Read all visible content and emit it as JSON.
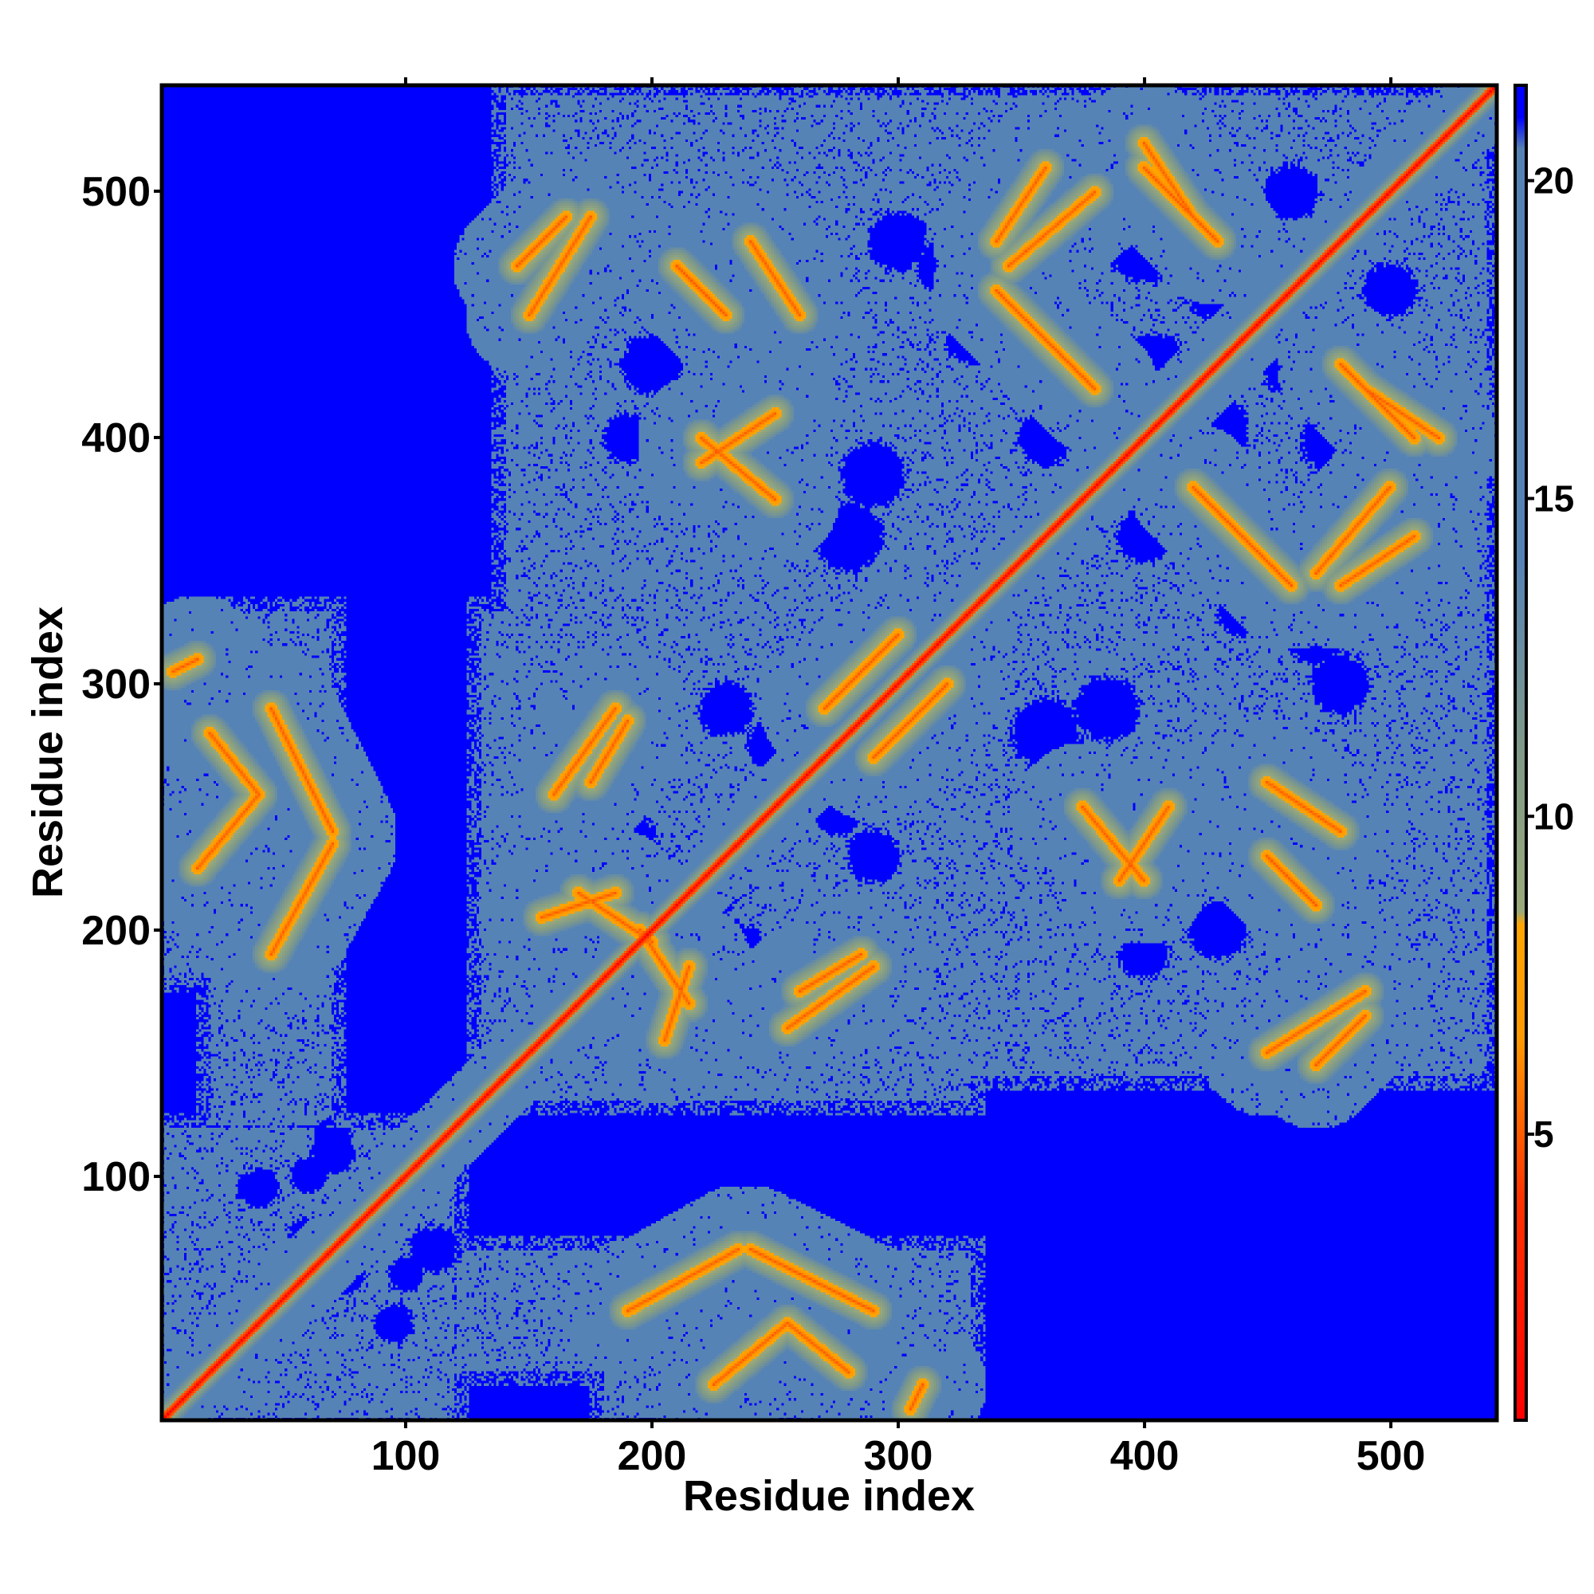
{
  "chart_data": {
    "type": "heatmap",
    "title": "",
    "xlabel": "Residue index",
    "ylabel": "Residue index",
    "xlim": [
      1,
      543
    ],
    "ylim": [
      1,
      543
    ],
    "x_ticks": [
      100,
      200,
      300,
      400,
      500
    ],
    "y_ticks": [
      100,
      200,
      300,
      400,
      500
    ],
    "colorbar": {
      "range": [
        0.5,
        21.5
      ],
      "ticks": [
        5,
        10,
        15,
        20
      ],
      "colors": {
        "near": "#ff0000",
        "mid": "#ff9900",
        "light": "#9aaa7a",
        "far": "#5683b5",
        "beyond": "#0000ff"
      },
      "stops": [
        {
          "value": 0.5,
          "color": "#ff0000"
        },
        {
          "value": 4,
          "color": "#ff3300"
        },
        {
          "value": 6.5,
          "color": "#ff9900"
        },
        {
          "value": 8.3,
          "color": "#ffa500"
        },
        {
          "value": 8.5,
          "color": "#9aaa7a"
        },
        {
          "value": 11,
          "color": "#809a88"
        },
        {
          "value": 14,
          "color": "#5683b5"
        },
        {
          "value": 20.5,
          "color": "#5683b5"
        },
        {
          "value": 21,
          "color": "#0000ff"
        },
        {
          "value": 21.5,
          "color": "#0000ff"
        }
      ]
    },
    "contact_regions": [
      {
        "x": [
          1,
          120
        ],
        "y": [
          1,
          120
        ]
      },
      {
        "x": [
          1,
          40
        ],
        "y": [
          180,
          320
        ]
      },
      {
        "x": [
          120,
          330
        ],
        "y": [
          20,
          70
        ]
      },
      {
        "x": [
          130,
          330
        ],
        "y": [
          140,
          330
        ]
      },
      {
        "x": [
          140,
          330
        ],
        "y": [
          320,
          515
        ]
      },
      {
        "x": [
          330,
          540
        ],
        "y": [
          140,
          330
        ]
      },
      {
        "x": [
          330,
          540
        ],
        "y": [
          320,
          540
        ]
      }
    ],
    "strands": [
      {
        "x1": 15,
        "y1": 225,
        "x2": 40,
        "y2": 255
      },
      {
        "x1": 40,
        "y1": 255,
        "x2": 20,
        "y2": 280
      },
      {
        "x1": 5,
        "y1": 305,
        "x2": 15,
        "y2": 310
      },
      {
        "x1": 155,
        "y1": 205,
        "x2": 185,
        "y2": 215
      },
      {
        "x1": 195,
        "y1": 200,
        "x2": 215,
        "y2": 170
      },
      {
        "x1": 175,
        "y1": 260,
        "x2": 190,
        "y2": 285
      },
      {
        "x1": 255,
        "y1": 160,
        "x2": 290,
        "y2": 185
      },
      {
        "x1": 270,
        "y1": 290,
        "x2": 300,
        "y2": 320
      },
      {
        "x1": 190,
        "y1": 45,
        "x2": 235,
        "y2": 70
      },
      {
        "x1": 240,
        "y1": 70,
        "x2": 290,
        "y2": 45
      },
      {
        "x1": 145,
        "y1": 470,
        "x2": 165,
        "y2": 490
      },
      {
        "x1": 210,
        "y1": 470,
        "x2": 230,
        "y2": 450
      },
      {
        "x1": 220,
        "y1": 400,
        "x2": 250,
        "y2": 375
      },
      {
        "x1": 345,
        "y1": 470,
        "x2": 380,
        "y2": 500
      },
      {
        "x1": 400,
        "y1": 510,
        "x2": 430,
        "y2": 480
      },
      {
        "x1": 390,
        "y1": 220,
        "x2": 410,
        "y2": 250
      },
      {
        "x1": 450,
        "y1": 150,
        "x2": 490,
        "y2": 175
      },
      {
        "x1": 450,
        "y1": 260,
        "x2": 480,
        "y2": 240
      },
      {
        "x1": 420,
        "y1": 380,
        "x2": 460,
        "y2": 340
      },
      {
        "x1": 480,
        "y1": 340,
        "x2": 510,
        "y2": 360
      },
      {
        "x1": 490,
        "y1": 420,
        "x2": 520,
        "y2": 400
      }
    ],
    "blobs": [
      {
        "x": 95,
        "y": 95,
        "r": 10
      },
      {
        "x": 60,
        "y": 75,
        "r": 8
      },
      {
        "x": 70,
        "y": 110,
        "r": 9
      },
      {
        "x": 115,
        "y": 70,
        "r": 8
      },
      {
        "x": 100,
        "y": 60,
        "r": 7
      },
      {
        "x": 55,
        "y": 55,
        "r": 7
      },
      {
        "x": 40,
        "y": 95,
        "r": 8
      },
      {
        "x": 110,
        "y": 130,
        "r": 7
      },
      {
        "x": 195,
        "y": 170,
        "r": 12
      },
      {
        "x": 175,
        "y": 205,
        "r": 10
      },
      {
        "x": 215,
        "y": 225,
        "r": 10
      },
      {
        "x": 250,
        "y": 275,
        "r": 11
      },
      {
        "x": 235,
        "y": 190,
        "r": 12
      },
      {
        "x": 290,
        "y": 230,
        "r": 11
      },
      {
        "x": 230,
        "y": 405,
        "r": 15
      },
      {
        "x": 260,
        "y": 470,
        "r": 12
      },
      {
        "x": 190,
        "y": 400,
        "r": 10
      },
      {
        "x": 290,
        "y": 385,
        "r": 13
      },
      {
        "x": 320,
        "y": 470,
        "r": 12
      },
      {
        "x": 170,
        "y": 505,
        "r": 9
      },
      {
        "x": 400,
        "y": 480,
        "r": 16
      },
      {
        "x": 430,
        "y": 400,
        "r": 12
      },
      {
        "x": 405,
        "y": 430,
        "r": 12
      },
      {
        "x": 460,
        "y": 430,
        "r": 12
      },
      {
        "x": 440,
        "y": 370,
        "r": 10
      },
      {
        "x": 400,
        "y": 360,
        "r": 11
      },
      {
        "x": 480,
        "y": 300,
        "r": 12
      },
      {
        "x": 500,
        "y": 460,
        "r": 11
      },
      {
        "x": 510,
        "y": 400,
        "r": 10
      },
      {
        "x": 360,
        "y": 280,
        "r": 14
      },
      {
        "x": 390,
        "y": 240,
        "r": 10
      },
      {
        "x": 470,
        "y": 240,
        "r": 10
      },
      {
        "x": 430,
        "y": 200,
        "r": 12
      },
      {
        "x": 360,
        "y": 420,
        "r": 10
      },
      {
        "x": 330,
        "y": 440,
        "r": 10
      }
    ]
  }
}
